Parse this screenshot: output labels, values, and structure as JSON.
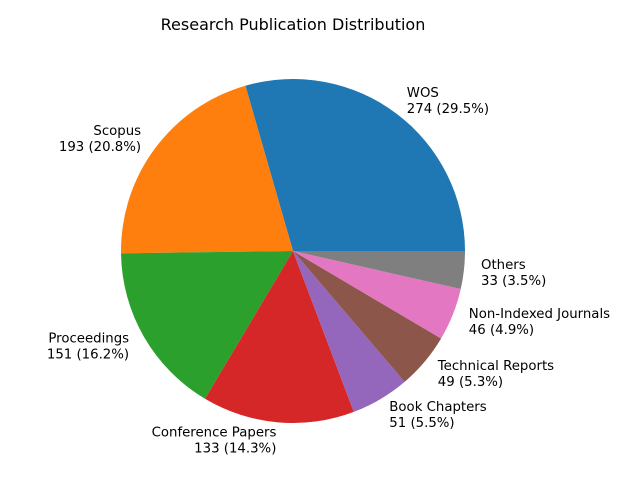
{
  "chart_data": {
    "type": "pie",
    "title": "Research Publication Distribution",
    "total": 930,
    "start_angle_deg": 0,
    "counterclock": true,
    "label_distance": 1.1,
    "background": "#ffffff",
    "text_color": "#000000",
    "legend": "none",
    "segments": [
      {
        "label": "WOS",
        "value": 274,
        "display": "274 (29.5%)",
        "color": "#1f77b4"
      },
      {
        "label": "Scopus",
        "value": 193,
        "display": "193 (20.8%)",
        "color": "#ff7f0e"
      },
      {
        "label": "Proceedings",
        "value": 151,
        "display": "151 (16.2%)",
        "color": "#2ca02c"
      },
      {
        "label": "Conference Papers",
        "value": 133,
        "display": "133 (14.3%)",
        "color": "#d62728"
      },
      {
        "label": "Book Chapters",
        "value": 51,
        "display": "51 (5.5%)",
        "color": "#9467bd"
      },
      {
        "label": "Technical Reports",
        "value": 49,
        "display": "49 (5.3%)",
        "color": "#8c564b"
      },
      {
        "label": "Non-Indexed Journals",
        "value": 46,
        "display": "46 (4.9%)",
        "color": "#e377c2"
      },
      {
        "label": "Others",
        "value": 33,
        "display": "33 (3.5%)",
        "color": "#7f7f7f"
      }
    ]
  }
}
